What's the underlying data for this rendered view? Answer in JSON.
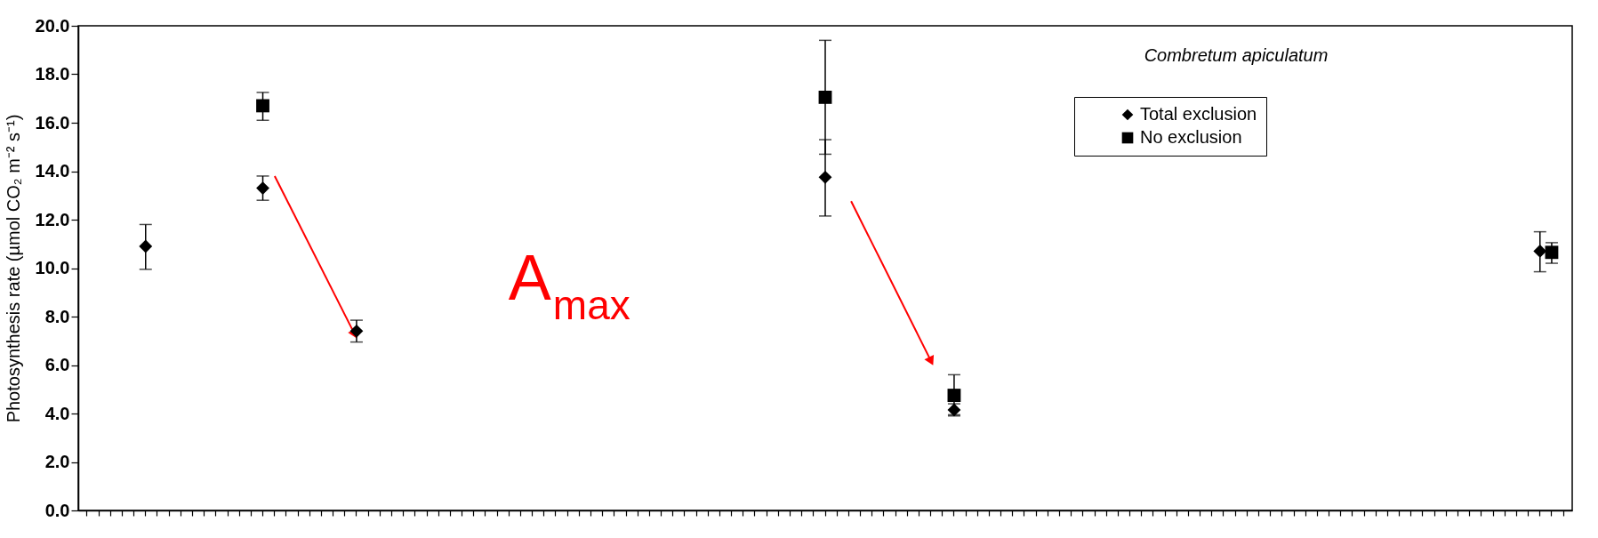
{
  "chart_data": {
    "type": "scatter",
    "ylabel": "Photosynthesis rate (µmol CO₂ m⁻² s⁻¹)",
    "annotations": [
      "Combretum apiculatum",
      "A$_{max}$"
    ],
    "categories": [
      null,
      null,
      null,
      null,
      null,
      null,
      null,
      null,
      null,
      null,
      null,
      null,
      null,
      null,
      null,
      null,
      null,
      null,
      null,
      null,
      null,
      null,
      null,
      null,
      null,
      null,
      null,
      null,
      null,
      null,
      null,
      null,
      null,
      null,
      null,
      null,
      null,
      null,
      null,
      null,
      null,
      null,
      null,
      null,
      null,
      null,
      null,
      null,
      null,
      null,
      null,
      null,
      null,
      null,
      null,
      null,
      null,
      null,
      null,
      null,
      null,
      null,
      null,
      null,
      null,
      null,
      null,
      null,
      null,
      null,
      null,
      null,
      null,
      null,
      null,
      null,
      null,
      null,
      null,
      null,
      null,
      null,
      null,
      null,
      null,
      null,
      null,
      null,
      null,
      null,
      null,
      null,
      null,
      null,
      null,
      null,
      null,
      null,
      null,
      null,
      null,
      null,
      null,
      null,
      null,
      null,
      null,
      null,
      null,
      null,
      null,
      null,
      null,
      null,
      null,
      null,
      null,
      null,
      null,
      null,
      null,
      null,
      null,
      null,
      null,
      null,
      null
    ],
    "ylim": [
      0,
      20
    ],
    "yticks": [
      {
        "value": 0,
        "label": "0.0"
      },
      {
        "value": 2,
        "label": "2.0"
      },
      {
        "value": 4,
        "label": "4.0"
      },
      {
        "value": 6,
        "label": "6.0"
      },
      {
        "value": 8,
        "label": "8.0"
      },
      {
        "value": 10,
        "label": "10.0"
      },
      {
        "value": 12,
        "label": "12.0"
      },
      {
        "value": 14,
        "label": "14.0"
      },
      {
        "value": 16,
        "label": "16.0"
      },
      {
        "value": 18,
        "label": "18.0"
      },
      {
        "value": 20,
        "label": "20.0"
      }
    ],
    "legend": "top right",
    "tick_labels": "y",
    "series": [
      {
        "name": "Total exclusion",
        "color": "#000000",
        "marker": "diamond",
        "values": [
          null,
          null,
          null,
          null,
          null,
          10.9,
          null,
          null,
          null,
          null,
          null,
          null,
          null,
          null,
          null,
          13.3,
          null,
          null,
          null,
          null,
          null,
          null,
          null,
          7.4,
          null,
          null,
          null,
          null,
          null,
          null,
          null,
          null,
          null,
          null,
          null,
          null,
          null,
          null,
          null,
          null,
          null,
          null,
          null,
          null,
          null,
          null,
          null,
          null,
          null,
          null,
          null,
          null,
          null,
          null,
          null,
          null,
          null,
          null,
          null,
          null,
          null,
          null,
          null,
          13.75,
          null,
          null,
          null,
          null,
          null,
          null,
          null,
          null,
          null,
          null,
          4.15,
          null,
          null,
          null,
          null,
          null,
          null,
          null,
          null,
          null,
          null,
          null,
          null,
          null,
          null,
          null,
          null,
          null,
          null,
          null,
          null,
          null,
          null,
          null,
          null,
          null,
          null,
          null,
          null,
          null,
          null,
          null,
          null,
          null,
          null,
          null,
          null,
          null,
          null,
          null,
          null,
          null,
          null,
          null,
          null,
          null,
          null,
          null,
          null,
          null,
          10.7,
          null,
          null
        ],
        "errors": [
          null,
          null,
          null,
          null,
          null,
          [
            9.95,
            11.8
          ],
          null,
          null,
          null,
          null,
          null,
          null,
          null,
          null,
          null,
          [
            12.8,
            13.8
          ],
          null,
          null,
          null,
          null,
          null,
          null,
          null,
          [
            6.95,
            7.85
          ],
          null,
          null,
          null,
          null,
          null,
          null,
          null,
          null,
          null,
          null,
          null,
          null,
          null,
          null,
          null,
          null,
          null,
          null,
          null,
          null,
          null,
          null,
          null,
          null,
          null,
          null,
          null,
          null,
          null,
          null,
          null,
          null,
          null,
          null,
          null,
          null,
          null,
          null,
          null,
          [
            12.15,
            15.3
          ],
          null,
          null,
          null,
          null,
          null,
          null,
          null,
          null,
          null,
          null,
          [
            3.9,
            4.4
          ],
          null,
          null,
          null,
          null,
          null,
          null,
          null,
          null,
          null,
          null,
          null,
          null,
          null,
          null,
          null,
          null,
          null,
          null,
          null,
          null,
          null,
          null,
          null,
          null,
          null,
          null,
          null,
          null,
          null,
          null,
          null,
          null,
          null,
          null,
          null,
          null,
          null,
          null,
          null,
          null,
          null,
          null,
          null,
          null,
          null,
          null,
          null,
          null,
          null,
          [
            9.85,
            11.5
          ],
          null,
          null
        ]
      },
      {
        "name": "No exclusion",
        "color": "#000000",
        "marker": "square",
        "values": [
          null,
          null,
          null,
          null,
          null,
          null,
          null,
          null,
          null,
          null,
          null,
          null,
          null,
          null,
          null,
          16.7,
          null,
          null,
          null,
          null,
          null,
          null,
          null,
          null,
          null,
          null,
          null,
          null,
          null,
          null,
          null,
          null,
          null,
          null,
          null,
          null,
          null,
          null,
          null,
          null,
          null,
          null,
          null,
          null,
          null,
          null,
          null,
          null,
          null,
          null,
          null,
          null,
          null,
          null,
          null,
          null,
          null,
          null,
          null,
          null,
          null,
          null,
          null,
          17.05,
          null,
          null,
          null,
          null,
          null,
          null,
          null,
          null,
          null,
          null,
          4.75,
          null,
          null,
          null,
          null,
          null,
          null,
          null,
          null,
          null,
          null,
          null,
          null,
          null,
          null,
          null,
          null,
          null,
          null,
          null,
          null,
          null,
          null,
          null,
          null,
          null,
          null,
          null,
          null,
          null,
          null,
          null,
          null,
          null,
          null,
          null,
          null,
          null,
          null,
          null,
          null,
          null,
          null,
          null,
          null,
          null,
          null,
          null,
          null,
          null,
          null,
          10.65,
          null
        ],
        "errors": [
          null,
          null,
          null,
          null,
          null,
          null,
          null,
          null,
          null,
          null,
          null,
          null,
          null,
          null,
          null,
          [
            16.1,
            17.25
          ],
          null,
          null,
          null,
          null,
          null,
          null,
          null,
          null,
          null,
          null,
          null,
          null,
          null,
          null,
          null,
          null,
          null,
          null,
          null,
          null,
          null,
          null,
          null,
          null,
          null,
          null,
          null,
          null,
          null,
          null,
          null,
          null,
          null,
          null,
          null,
          null,
          null,
          null,
          null,
          null,
          null,
          null,
          null,
          null,
          null,
          null,
          null,
          [
            14.7,
            19.4
          ],
          null,
          null,
          null,
          null,
          null,
          null,
          null,
          null,
          null,
          null,
          [
            3.95,
            5.6
          ],
          null,
          null,
          null,
          null,
          null,
          null,
          null,
          null,
          null,
          null,
          null,
          null,
          null,
          null,
          null,
          null,
          null,
          null,
          null,
          null,
          null,
          null,
          null,
          null,
          null,
          null,
          null,
          null,
          null,
          null,
          null,
          null,
          null,
          null,
          null,
          null,
          null,
          null,
          null,
          null,
          null,
          null,
          null,
          null,
          null,
          null,
          null,
          null,
          null,
          null,
          [
            10.2,
            11.05
          ],
          null
        ]
      }
    ]
  }
}
